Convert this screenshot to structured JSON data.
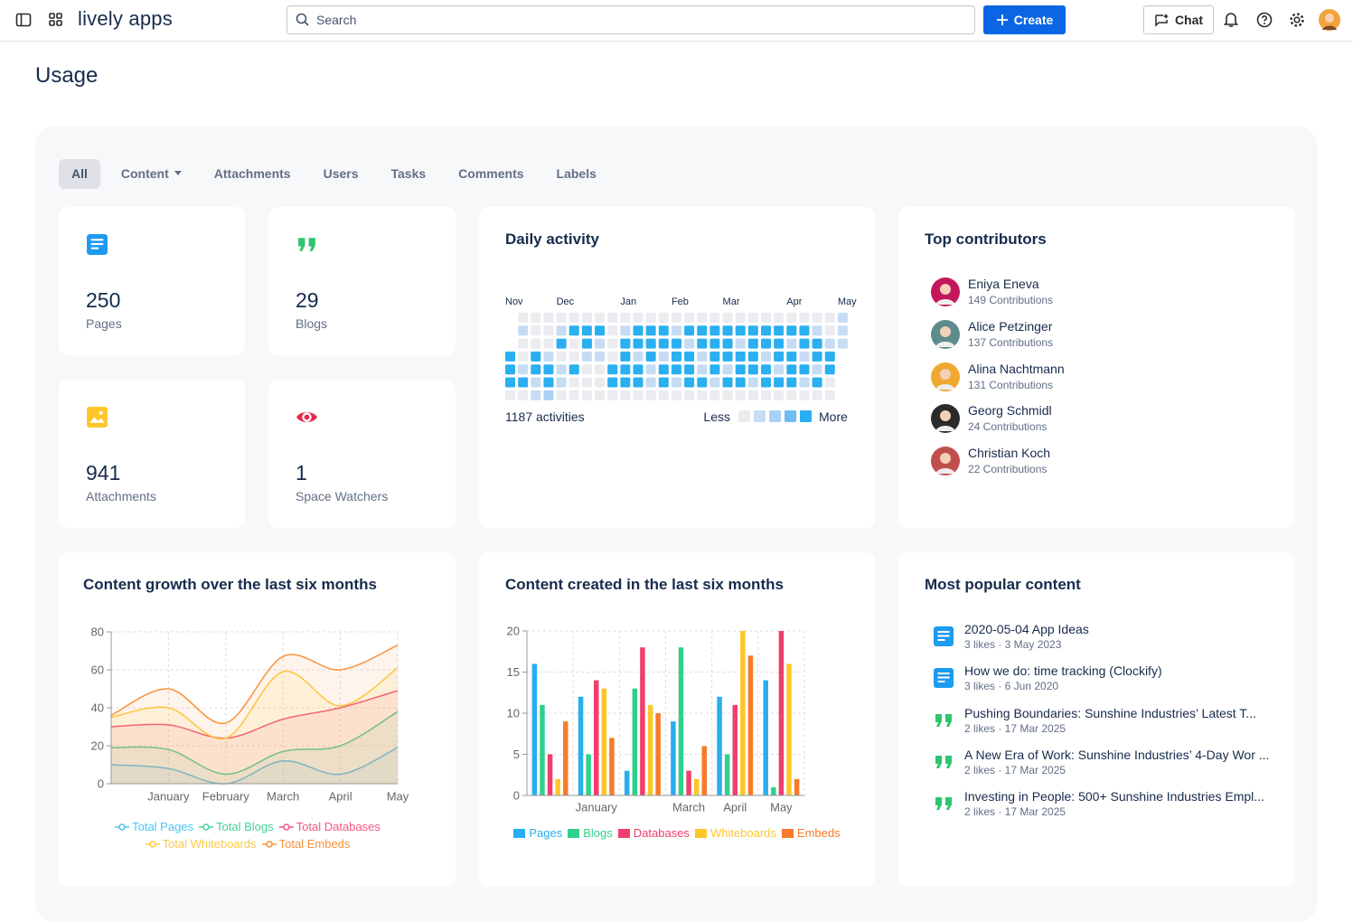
{
  "header": {
    "logo": "lively apps",
    "search_placeholder": "Search",
    "create_button": "Create",
    "chat_button": "Chat"
  },
  "page_title": "Usage",
  "tabs": [
    "All",
    "Content",
    "Attachments",
    "Users",
    "Tasks",
    "Comments",
    "Labels"
  ],
  "stats": [
    {
      "icon": "page",
      "value": 250,
      "label": "Pages"
    },
    {
      "icon": "blog",
      "value": 29,
      "label": "Blogs"
    },
    {
      "icon": "image",
      "value": 941,
      "label": "Attachments"
    },
    {
      "icon": "eye",
      "value": 1,
      "label": "Space Watchers"
    }
  ],
  "daily_activity": {
    "title": "Daily activity",
    "week_labels": [
      "Nov",
      null,
      null,
      null,
      "Dec",
      null,
      null,
      null,
      null,
      "Jan",
      null,
      null,
      null,
      "Feb",
      null,
      null,
      null,
      "Mar",
      null,
      null,
      null,
      null,
      "Apr",
      null,
      null,
      null,
      "May"
    ],
    "weeks": [
      [
        null,
        null,
        null,
        4,
        4,
        4,
        0
      ],
      [
        0,
        1,
        0,
        0,
        1,
        4,
        0
      ],
      [
        0,
        0,
        0,
        4,
        4,
        1,
        1
      ],
      [
        0,
        0,
        0,
        1,
        4,
        4,
        2
      ],
      [
        0,
        1,
        4,
        0,
        1,
        1,
        0
      ],
      [
        0,
        4,
        0,
        0,
        4,
        0,
        0
      ],
      [
        0,
        4,
        4,
        1,
        0,
        0,
        0
      ],
      [
        0,
        4,
        1,
        1,
        0,
        0,
        0
      ],
      [
        0,
        0,
        0,
        0,
        4,
        4,
        0
      ],
      [
        0,
        1,
        4,
        4,
        4,
        4,
        0
      ],
      [
        0,
        4,
        4,
        1,
        4,
        4,
        0
      ],
      [
        0,
        4,
        4,
        4,
        1,
        1,
        0
      ],
      [
        0,
        4,
        4,
        1,
        4,
        4,
        0
      ],
      [
        0,
        1,
        4,
        4,
        4,
        1,
        0
      ],
      [
        0,
        4,
        1,
        4,
        4,
        4,
        0
      ],
      [
        0,
        4,
        4,
        1,
        1,
        4,
        0
      ],
      [
        0,
        4,
        4,
        4,
        4,
        1,
        0
      ],
      [
        0,
        4,
        4,
        4,
        1,
        4,
        0
      ],
      [
        0,
        4,
        1,
        4,
        4,
        4,
        0
      ],
      [
        0,
        4,
        4,
        4,
        4,
        1,
        0
      ],
      [
        0,
        4,
        4,
        1,
        4,
        4,
        0
      ],
      [
        0,
        4,
        4,
        4,
        1,
        4,
        0
      ],
      [
        0,
        4,
        1,
        4,
        4,
        4,
        0
      ],
      [
        0,
        4,
        4,
        1,
        4,
        1,
        0
      ],
      [
        0,
        1,
        4,
        4,
        1,
        4,
        0
      ],
      [
        0,
        0,
        1,
        4,
        4,
        0,
        0
      ],
      [
        1,
        1,
        1,
        null,
        null,
        null,
        null
      ]
    ],
    "level_colors": [
      "#ebecf0",
      "#c6dcf3",
      "#a9d0f5",
      "#6fbdf2",
      "#2aaff0"
    ],
    "summary": "1187 activities",
    "legend_less": "Less",
    "legend_more": "More"
  },
  "top_contributors": {
    "title": "Top contributors",
    "people": [
      {
        "name": "Eniya Eneva",
        "contributions": "149 Contributions"
      },
      {
        "name": "Alice Petzinger",
        "contributions": "137 Contributions"
      },
      {
        "name": "Alina Nachtmann",
        "contributions": "131 Contributions"
      },
      {
        "name": "Georg Schmidl",
        "contributions": "24 Contributions"
      },
      {
        "name": "Christian Koch",
        "contributions": "22 Contributions"
      }
    ]
  },
  "chart_data": [
    {
      "type": "line",
      "title": "Content growth over the last six months",
      "categories": [
        null,
        "January",
        "February",
        "March",
        "April",
        "May"
      ],
      "series": [
        {
          "name": "Total Pages",
          "color": "#4cc3f5",
          "values": [
            10,
            8,
            0,
            12,
            5,
            19
          ]
        },
        {
          "name": "Total Blogs",
          "color": "#45d19a",
          "values": [
            19,
            18,
            5,
            17,
            20,
            38
          ]
        },
        {
          "name": "Total Databases",
          "color": "#f2557f",
          "values": [
            30,
            31,
            24,
            34,
            40,
            49
          ]
        },
        {
          "name": "Total Whiteboards",
          "color": "#ffcb3d",
          "values": [
            35,
            40,
            24,
            59,
            41,
            61
          ]
        },
        {
          "name": "Total Embeds",
          "color": "#f7913a",
          "values": [
            36,
            50,
            32,
            67,
            60,
            73
          ]
        }
      ],
      "ylim": [
        0,
        80
      ],
      "yticks": [
        0,
        20,
        40,
        60,
        80
      ],
      "grid": true,
      "smooth": true,
      "area": true
    },
    {
      "type": "bar",
      "title": "Content created in the last six months",
      "categories": [
        null,
        "January",
        null,
        "March",
        "April",
        "May"
      ],
      "series": [
        {
          "name": "Pages",
          "color": "#28aef0",
          "values": [
            16,
            12,
            3,
            9,
            12,
            14
          ]
        },
        {
          "name": "Blogs",
          "color": "#2fd18a",
          "values": [
            11,
            5,
            13,
            18,
            5,
            1
          ]
        },
        {
          "name": "Databases",
          "color": "#ef3f6e",
          "values": [
            5,
            14,
            18,
            3,
            11,
            20
          ]
        },
        {
          "name": "Whiteboards",
          "color": "#ffc629",
          "values": [
            2,
            13,
            11,
            2,
            20,
            16
          ]
        },
        {
          "name": "Embeds",
          "color": "#f77b2a",
          "values": [
            9,
            7,
            10,
            6,
            17,
            2
          ]
        }
      ],
      "ylim": [
        0,
        20
      ],
      "yticks": [
        0,
        5,
        10,
        15,
        20
      ],
      "grid": true
    }
  ],
  "popular_content": {
    "title": "Most popular content",
    "items": [
      {
        "icon": "page",
        "title": "2020-05-04 App Ideas",
        "meta": "3 likes · 3 May 2023"
      },
      {
        "icon": "page",
        "title": "How we do: time tracking (Clockify)",
        "meta": "3 likes · 6 Jun 2020"
      },
      {
        "icon": "blog",
        "title": "Pushing Boundaries: Sunshine Industries’ Latest T...",
        "meta": "2 likes · 17 Mar 2025"
      },
      {
        "icon": "blog",
        "title": "A New Era of Work: Sunshine Industries’ 4-Day Wor ...",
        "meta": "2 likes · 17 Mar 2025"
      },
      {
        "icon": "blog",
        "title": "Investing in People: 500+ Sunshine Industries Empl...",
        "meta": "2 likes · 17 Mar 2025"
      }
    ]
  }
}
